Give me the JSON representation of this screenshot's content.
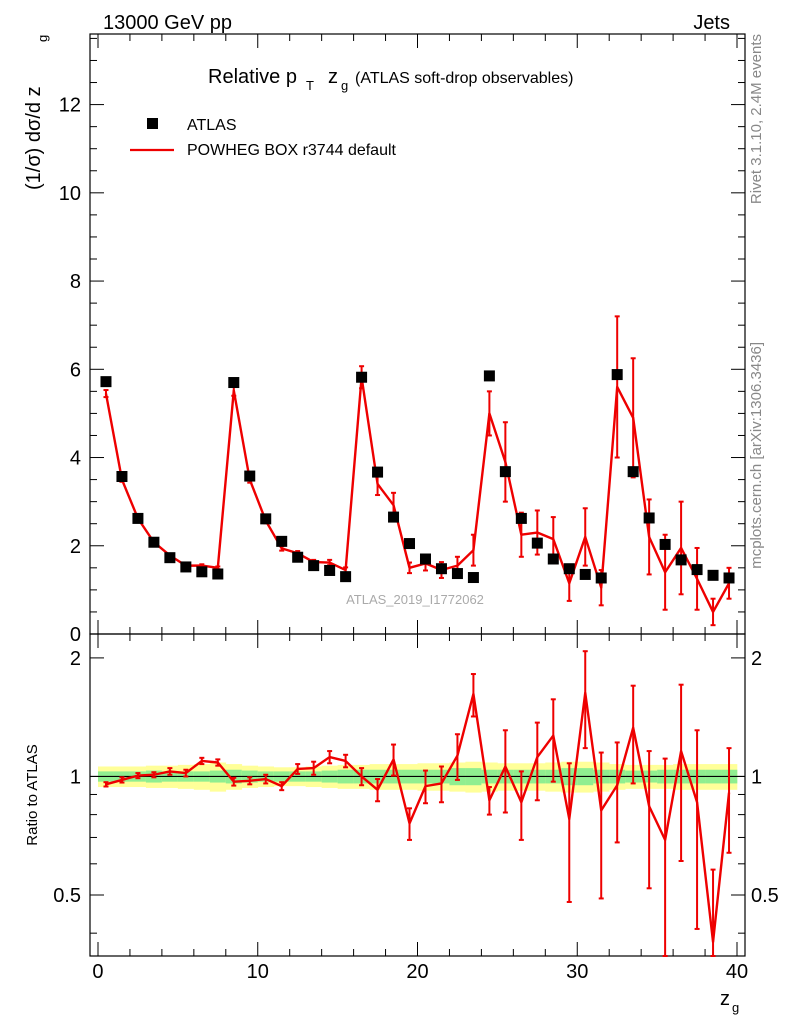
{
  "header": {
    "left": "13000 GeV pp",
    "right": "Jets"
  },
  "title": {
    "main": "Relative p",
    "sub_T": "T",
    "zvar": "z",
    "sub_g": "g",
    "paren": "(ATLAS soft-drop observables)"
  },
  "side_labels": {
    "rivet": "Rivet 3.1.10,  2.4M events",
    "mcplots": "mcplots.cern.ch [arXiv:1306.3436]"
  },
  "watermark": "ATLAS_2019_I1772062",
  "colors": {
    "mc": "#ee0000",
    "data": "#000000",
    "band_inner": "#90ee90",
    "band_outer": "#ffff99",
    "watermark": "#aaaaaa"
  },
  "chart_data": [
    {
      "type": "scatter",
      "panel": "main",
      "title": "Relative pT zg (ATLAS soft-drop observables)",
      "xlabel": "z",
      "xlabel_sub": "g",
      "ylabel": "(1/σ) dσ/d z",
      "ylabel_sub": "g",
      "xlim": [
        -0.5,
        40.5
      ],
      "ylim": [
        0,
        13.6
      ],
      "x_ticks": [
        0,
        10,
        20,
        30,
        40
      ],
      "x_tick_labels": [
        "0",
        "10",
        "20",
        "30",
        "40"
      ],
      "y_ticks": [
        0,
        2,
        4,
        6,
        8,
        10,
        12
      ],
      "y_tick_labels": [
        "0",
        "2",
        "4",
        "6",
        "8",
        "10",
        "12"
      ],
      "legend": [
        {
          "label": "ATLAS",
          "style": "marker"
        },
        {
          "label": "POWHEG BOX r3744 default",
          "style": "line"
        }
      ],
      "x": [
        0.5,
        1.5,
        2.5,
        3.5,
        4.5,
        5.5,
        6.5,
        7.5,
        8.5,
        9.5,
        10.5,
        11.5,
        12.5,
        13.5,
        14.5,
        15.5,
        16.5,
        17.5,
        18.5,
        19.5,
        20.5,
        21.5,
        22.5,
        23.5,
        24.5,
        25.5,
        26.5,
        27.5,
        28.5,
        29.5,
        30.5,
        31.5,
        32.5,
        33.5,
        34.5,
        35.5,
        36.5,
        37.5,
        38.5,
        39.5
      ],
      "series": [
        {
          "name": "ATLAS",
          "values": [
            5.72,
            3.57,
            2.62,
            2.08,
            1.73,
            1.52,
            1.41,
            1.36,
            5.7,
            3.58,
            2.61,
            2.1,
            1.74,
            1.55,
            1.44,
            1.3,
            5.82,
            3.67,
            2.65,
            2.05,
            1.7,
            1.48,
            1.37,
            1.28,
            5.85,
            3.68,
            2.62,
            2.06,
            1.7,
            1.48,
            1.35,
            1.27,
            5.88,
            3.68,
            2.63,
            2.03,
            1.68,
            1.46,
            1.33,
            1.27
          ]
        },
        {
          "name": "POWHEG BOX r3744 default",
          "values": [
            5.45,
            3.5,
            2.62,
            2.08,
            1.78,
            1.55,
            1.55,
            1.5,
            5.52,
            3.5,
            2.57,
            1.94,
            1.83,
            1.63,
            1.62,
            1.45,
            5.82,
            3.4,
            2.92,
            1.5,
            1.6,
            1.45,
            1.55,
            1.9,
            5.0,
            3.9,
            2.25,
            2.3,
            2.15,
            1.15,
            2.2,
            1.05,
            5.6,
            4.9,
            2.2,
            1.4,
            1.95,
            1.25,
            0.5,
            1.15
          ],
          "errors": [
            0.08,
            0.05,
            0.04,
            0.03,
            0.03,
            0.03,
            0.03,
            0.03,
            0.12,
            0.07,
            0.06,
            0.05,
            0.05,
            0.05,
            0.06,
            0.06,
            0.25,
            0.25,
            0.28,
            0.12,
            0.16,
            0.18,
            0.2,
            0.35,
            0.5,
            0.9,
            0.5,
            0.5,
            0.5,
            0.4,
            0.65,
            0.4,
            1.6,
            1.35,
            0.85,
            0.85,
            1.05,
            0.7,
            0.3,
            0.35
          ]
        }
      ]
    },
    {
      "type": "line",
      "panel": "ratio",
      "ylabel": "Ratio to ATLAS",
      "xlim": [
        -0.5,
        40.5
      ],
      "ylim": [
        0.35,
        2.3
      ],
      "y_ticks": [
        0.5,
        1,
        2
      ],
      "y_tick_labels": [
        "0.5",
        "1",
        "2"
      ],
      "x": [
        0.5,
        1.5,
        2.5,
        3.5,
        4.5,
        5.5,
        6.5,
        7.5,
        8.5,
        9.5,
        10.5,
        11.5,
        12.5,
        13.5,
        14.5,
        15.5,
        16.5,
        17.5,
        18.5,
        19.5,
        20.5,
        21.5,
        22.5,
        23.5,
        24.5,
        25.5,
        26.5,
        27.5,
        28.5,
        29.5,
        30.5,
        31.5,
        32.5,
        33.5,
        34.5,
        35.5,
        36.5,
        37.5,
        38.5,
        39.5
      ],
      "series": [
        {
          "name": "POWHEG BOX r3744 default",
          "values": [
            0.955,
            0.98,
            1.005,
            1.01,
            1.03,
            1.02,
            1.095,
            1.085,
            0.97,
            0.975,
            0.985,
            0.945,
            1.045,
            1.05,
            1.12,
            1.095,
            1.0,
            0.925,
            1.105,
            0.76,
            0.945,
            0.96,
            1.13,
            1.62,
            0.87,
            1.06,
            0.86,
            1.12,
            1.27,
            0.78,
            1.63,
            0.82,
            0.95,
            1.33,
            0.84,
            0.69,
            1.16,
            0.86,
            0.38,
            0.91
          ],
          "err_low": [
            0.012,
            0.015,
            0.015,
            0.015,
            0.02,
            0.02,
            0.02,
            0.02,
            0.022,
            0.02,
            0.025,
            0.022,
            0.03,
            0.04,
            0.04,
            0.04,
            0.05,
            0.06,
            0.1,
            0.07,
            0.09,
            0.1,
            0.15,
            0.2,
            0.07,
            0.25,
            0.17,
            0.25,
            0.3,
            0.3,
            0.45,
            0.33,
            0.27,
            0.37,
            0.32,
            0.42,
            0.55,
            0.45,
            0.2,
            0.27
          ],
          "err_high": [
            0.012,
            0.015,
            0.015,
            0.015,
            0.02,
            0.02,
            0.02,
            0.02,
            0.022,
            0.02,
            0.025,
            0.022,
            0.03,
            0.04,
            0.04,
            0.04,
            0.05,
            0.06,
            0.1,
            0.07,
            0.09,
            0.1,
            0.15,
            0.2,
            0.07,
            0.25,
            0.17,
            0.25,
            0.3,
            0.3,
            0.45,
            0.33,
            0.27,
            0.37,
            0.32,
            0.42,
            0.55,
            0.45,
            0.2,
            0.27
          ]
        }
      ],
      "band_inner_halfwidth": [
        0.03,
        0.03,
        0.03,
        0.035,
        0.03,
        0.03,
        0.03,
        0.035,
        0.04,
        0.035,
        0.03,
        0.03,
        0.03,
        0.03,
        0.035,
        0.04,
        0.04,
        0.04,
        0.04,
        0.04,
        0.04,
        0.04,
        0.05,
        0.05,
        0.04,
        0.04,
        0.04,
        0.04,
        0.04,
        0.05,
        0.05,
        0.04,
        0.04,
        0.035,
        0.035,
        0.04,
        0.04,
        0.04,
        0.04,
        0.04
      ],
      "band_outer_halfwidth": [
        0.06,
        0.06,
        0.06,
        0.065,
        0.065,
        0.07,
        0.075,
        0.085,
        0.075,
        0.065,
        0.06,
        0.055,
        0.055,
        0.06,
        0.065,
        0.07,
        0.07,
        0.075,
        0.075,
        0.075,
        0.08,
        0.08,
        0.085,
        0.09,
        0.085,
        0.08,
        0.08,
        0.08,
        0.085,
        0.09,
        0.09,
        0.085,
        0.075,
        0.07,
        0.07,
        0.07,
        0.075,
        0.075,
        0.075,
        0.075
      ]
    }
  ]
}
